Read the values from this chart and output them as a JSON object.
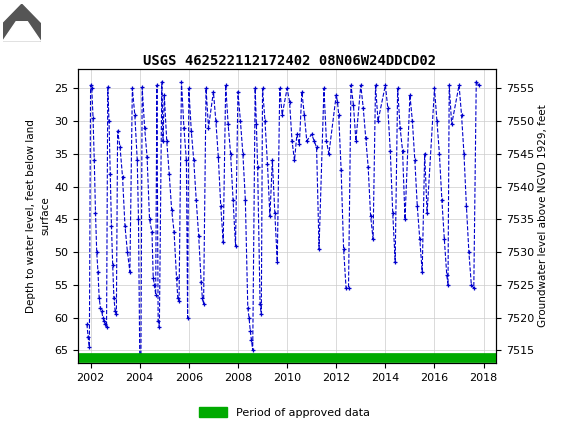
{
  "title": "USGS 462522112172402 08N06W24DDCD02",
  "ylabel_left": "Depth to water level, feet below land\nsurface",
  "ylabel_right": "Groundwater level above NGVD 1929, feet",
  "xlim": [
    2001.5,
    2018.5
  ],
  "ylim_left": [
    67,
    22
  ],
  "ylim_right": [
    7513,
    7558
  ],
  "yticks_left": [
    25,
    30,
    35,
    40,
    45,
    50,
    55,
    60,
    65
  ],
  "yticks_right": [
    7515,
    7520,
    7525,
    7530,
    7535,
    7540,
    7545,
    7550,
    7555
  ],
  "xticks": [
    2002,
    2004,
    2006,
    2008,
    2010,
    2012,
    2014,
    2016,
    2018
  ],
  "header_color": "#1a6b3c",
  "line_color": "#0000cc",
  "marker": "+",
  "linestyle": "--",
  "legend_label": "Period of approved data",
  "legend_color": "#00aa00",
  "data": [
    [
      2001.85,
      61.0
    ],
    [
      2001.9,
      63.0
    ],
    [
      2001.95,
      64.5
    ],
    [
      2002.0,
      24.5
    ],
    [
      2002.05,
      25.0
    ],
    [
      2002.1,
      29.5
    ],
    [
      2002.15,
      36.0
    ],
    [
      2002.2,
      44.0
    ],
    [
      2002.25,
      50.0
    ],
    [
      2002.3,
      53.0
    ],
    [
      2002.35,
      57.0
    ],
    [
      2002.4,
      58.5
    ],
    [
      2002.45,
      59.0
    ],
    [
      2002.5,
      60.0
    ],
    [
      2002.55,
      60.5
    ],
    [
      2002.6,
      61.0
    ],
    [
      2002.65,
      61.5
    ],
    [
      2002.7,
      24.8
    ],
    [
      2002.75,
      30.0
    ],
    [
      2002.8,
      38.0
    ],
    [
      2002.85,
      46.0
    ],
    [
      2002.9,
      52.0
    ],
    [
      2002.95,
      57.0
    ],
    [
      2003.0,
      59.0
    ],
    [
      2003.05,
      59.5
    ],
    [
      2003.1,
      31.5
    ],
    [
      2003.2,
      34.0
    ],
    [
      2003.3,
      38.5
    ],
    [
      2003.4,
      46.0
    ],
    [
      2003.5,
      50.0
    ],
    [
      2003.6,
      53.0
    ],
    [
      2003.7,
      25.0
    ],
    [
      2003.8,
      29.0
    ],
    [
      2003.9,
      36.0
    ],
    [
      2003.95,
      45.0
    ],
    [
      2004.0,
      65.5
    ],
    [
      2004.05,
      65.8
    ],
    [
      2004.1,
      24.8
    ],
    [
      2004.2,
      31.0
    ],
    [
      2004.3,
      35.5
    ],
    [
      2004.4,
      45.0
    ],
    [
      2004.5,
      47.0
    ],
    [
      2004.55,
      54.0
    ],
    [
      2004.6,
      55.0
    ],
    [
      2004.65,
      56.5
    ],
    [
      2004.7,
      24.5
    ],
    [
      2004.75,
      60.5
    ],
    [
      2004.8,
      61.5
    ],
    [
      2004.9,
      24.0
    ],
    [
      2004.95,
      33.0
    ],
    [
      2005.0,
      26.0
    ],
    [
      2005.1,
      33.0
    ],
    [
      2005.2,
      38.0
    ],
    [
      2005.3,
      43.5
    ],
    [
      2005.4,
      47.0
    ],
    [
      2005.5,
      54.0
    ],
    [
      2005.55,
      57.0
    ],
    [
      2005.6,
      57.5
    ],
    [
      2005.7,
      24.0
    ],
    [
      2005.8,
      31.0
    ],
    [
      2005.9,
      36.0
    ],
    [
      2005.95,
      60.0
    ],
    [
      2006.0,
      25.0
    ],
    [
      2006.1,
      31.5
    ],
    [
      2006.2,
      36.0
    ],
    [
      2006.3,
      42.0
    ],
    [
      2006.4,
      47.5
    ],
    [
      2006.5,
      54.5
    ],
    [
      2006.55,
      57.0
    ],
    [
      2006.6,
      58.0
    ],
    [
      2006.7,
      25.0
    ],
    [
      2006.8,
      31.0
    ],
    [
      2007.0,
      25.5
    ],
    [
      2007.1,
      30.0
    ],
    [
      2007.2,
      35.5
    ],
    [
      2007.3,
      43.0
    ],
    [
      2007.4,
      48.5
    ],
    [
      2007.5,
      24.5
    ],
    [
      2007.6,
      30.5
    ],
    [
      2007.7,
      35.0
    ],
    [
      2007.8,
      42.0
    ],
    [
      2007.9,
      49.0
    ],
    [
      2008.0,
      25.5
    ],
    [
      2008.1,
      30.0
    ],
    [
      2008.2,
      35.0
    ],
    [
      2008.3,
      42.0
    ],
    [
      2008.4,
      58.5
    ],
    [
      2008.45,
      60.0
    ],
    [
      2008.5,
      62.0
    ],
    [
      2008.55,
      63.5
    ],
    [
      2008.6,
      65.0
    ],
    [
      2008.7,
      25.0
    ],
    [
      2008.75,
      30.5
    ],
    [
      2008.8,
      37.0
    ],
    [
      2008.9,
      58.0
    ],
    [
      2008.95,
      59.5
    ],
    [
      2009.0,
      25.0
    ],
    [
      2009.1,
      30.0
    ],
    [
      2009.2,
      36.5
    ],
    [
      2009.3,
      44.5
    ],
    [
      2009.4,
      36.0
    ],
    [
      2009.5,
      44.0
    ],
    [
      2009.6,
      51.5
    ],
    [
      2009.7,
      25.0
    ],
    [
      2009.8,
      29.0
    ],
    [
      2010.0,
      25.0
    ],
    [
      2010.1,
      27.0
    ],
    [
      2010.2,
      33.0
    ],
    [
      2010.3,
      36.0
    ],
    [
      2010.4,
      32.0
    ],
    [
      2010.5,
      33.5
    ],
    [
      2010.6,
      25.5
    ],
    [
      2010.7,
      29.0
    ],
    [
      2010.8,
      33.0
    ],
    [
      2011.0,
      32.0
    ],
    [
      2011.1,
      33.0
    ],
    [
      2011.2,
      34.0
    ],
    [
      2011.3,
      49.5
    ],
    [
      2011.5,
      25.0
    ],
    [
      2011.6,
      33.0
    ],
    [
      2011.7,
      35.0
    ],
    [
      2012.0,
      26.0
    ],
    [
      2012.05,
      27.0
    ],
    [
      2012.1,
      29.0
    ],
    [
      2012.2,
      37.5
    ],
    [
      2012.3,
      49.5
    ],
    [
      2012.4,
      55.5
    ],
    [
      2012.5,
      55.5
    ],
    [
      2012.6,
      24.5
    ],
    [
      2012.7,
      27.5
    ],
    [
      2012.8,
      33.0
    ],
    [
      2013.0,
      24.5
    ],
    [
      2013.1,
      28.0
    ],
    [
      2013.2,
      32.5
    ],
    [
      2013.3,
      37.0
    ],
    [
      2013.4,
      44.5
    ],
    [
      2013.5,
      48.0
    ],
    [
      2013.6,
      24.5
    ],
    [
      2013.7,
      30.0
    ],
    [
      2014.0,
      24.5
    ],
    [
      2014.1,
      28.0
    ],
    [
      2014.2,
      34.5
    ],
    [
      2014.3,
      44.0
    ],
    [
      2014.4,
      51.5
    ],
    [
      2014.5,
      25.0
    ],
    [
      2014.6,
      31.0
    ],
    [
      2014.7,
      34.5
    ],
    [
      2014.8,
      45.0
    ],
    [
      2015.0,
      26.0
    ],
    [
      2015.1,
      30.0
    ],
    [
      2015.2,
      36.0
    ],
    [
      2015.3,
      43.0
    ],
    [
      2015.4,
      48.0
    ],
    [
      2015.5,
      53.0
    ],
    [
      2015.6,
      35.0
    ],
    [
      2015.7,
      44.0
    ],
    [
      2016.0,
      25.0
    ],
    [
      2016.1,
      30.0
    ],
    [
      2016.2,
      35.0
    ],
    [
      2016.3,
      42.0
    ],
    [
      2016.4,
      48.0
    ],
    [
      2016.5,
      53.5
    ],
    [
      2016.55,
      55.0
    ],
    [
      2016.6,
      24.5
    ],
    [
      2016.7,
      30.5
    ],
    [
      2017.0,
      24.5
    ],
    [
      2017.1,
      29.0
    ],
    [
      2017.2,
      35.0
    ],
    [
      2017.3,
      43.0
    ],
    [
      2017.4,
      50.0
    ],
    [
      2017.5,
      55.0
    ],
    [
      2017.6,
      55.5
    ],
    [
      2017.7,
      24.0
    ],
    [
      2017.8,
      24.5
    ]
  ]
}
